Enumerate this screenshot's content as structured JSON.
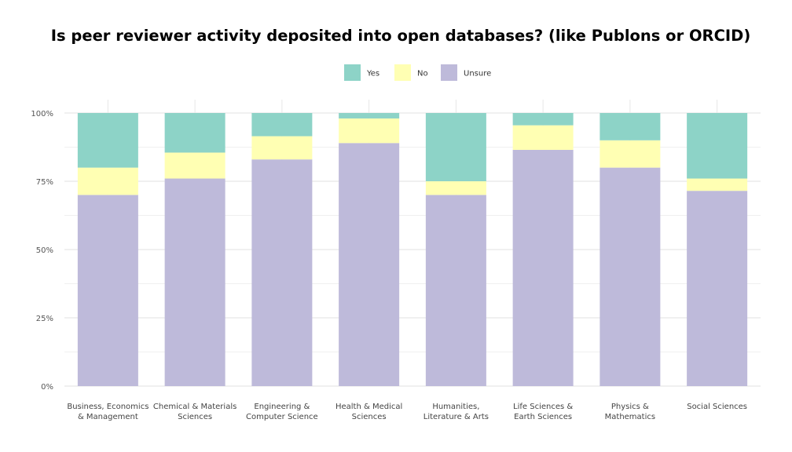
{
  "chart_data": {
    "type": "bar",
    "stacked": true,
    "title": "Is peer reviewer activity deposited into open databases? (like Publons or ORCID)",
    "xlabel": "",
    "ylabel": "",
    "ylim": [
      0,
      100
    ],
    "yticks": [
      0,
      25,
      50,
      75,
      100
    ],
    "ytick_labels": [
      "0%",
      "25%",
      "50%",
      "75%",
      "100%"
    ],
    "grid": true,
    "legend": "top",
    "categories": [
      [
        "Business, Economics",
        "& Management"
      ],
      [
        "Chemical & Materials",
        "Sciences"
      ],
      [
        "Engineering &",
        "Computer Science"
      ],
      [
        "Health & Medical",
        "Sciences"
      ],
      [
        "Humanities,",
        "Literature & Arts"
      ],
      [
        "Life Sciences &",
        "Earth Sciences"
      ],
      [
        "Physics &",
        "Mathematics"
      ],
      [
        "Social Sciences"
      ]
    ],
    "series": [
      {
        "name": "Unsure",
        "color": "#bebada",
        "values": [
          70,
          76,
          83,
          89,
          70,
          86.5,
          80,
          71.5
        ]
      },
      {
        "name": "No",
        "color": "#ffffb3",
        "values": [
          10,
          9.5,
          8.5,
          9,
          5,
          9,
          10,
          4.5
        ]
      },
      {
        "name": "Yes",
        "color": "#8dd3c7",
        "values": [
          20,
          14.5,
          8.5,
          2,
          25,
          4.5,
          10,
          24
        ]
      }
    ],
    "legend_order": [
      "Yes",
      "No",
      "Unsure"
    ]
  }
}
